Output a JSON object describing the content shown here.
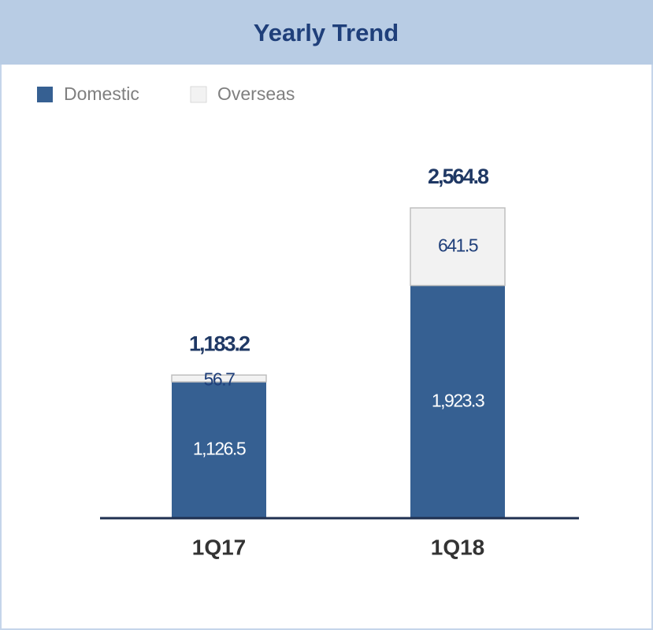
{
  "chart_data": {
    "type": "stacked_bar",
    "title": "Yearly Trend",
    "categories": [
      "1Q17",
      "1Q18"
    ],
    "series": [
      {
        "name": "Domestic",
        "color": "#366092",
        "values": [
          1126.5,
          1923.3
        ],
        "value_labels": [
          "1,126.5",
          "1,923.3"
        ]
      },
      {
        "name": "Overseas",
        "color": "#f2f2f2",
        "values": [
          56.7,
          641.5
        ],
        "value_labels": [
          "56.7",
          "641.5"
        ]
      }
    ],
    "totals": {
      "values": [
        1183.2,
        2564.8
      ],
      "value_labels": [
        "1,183.2",
        "2,564.8"
      ]
    },
    "legend": "top-left"
  }
}
